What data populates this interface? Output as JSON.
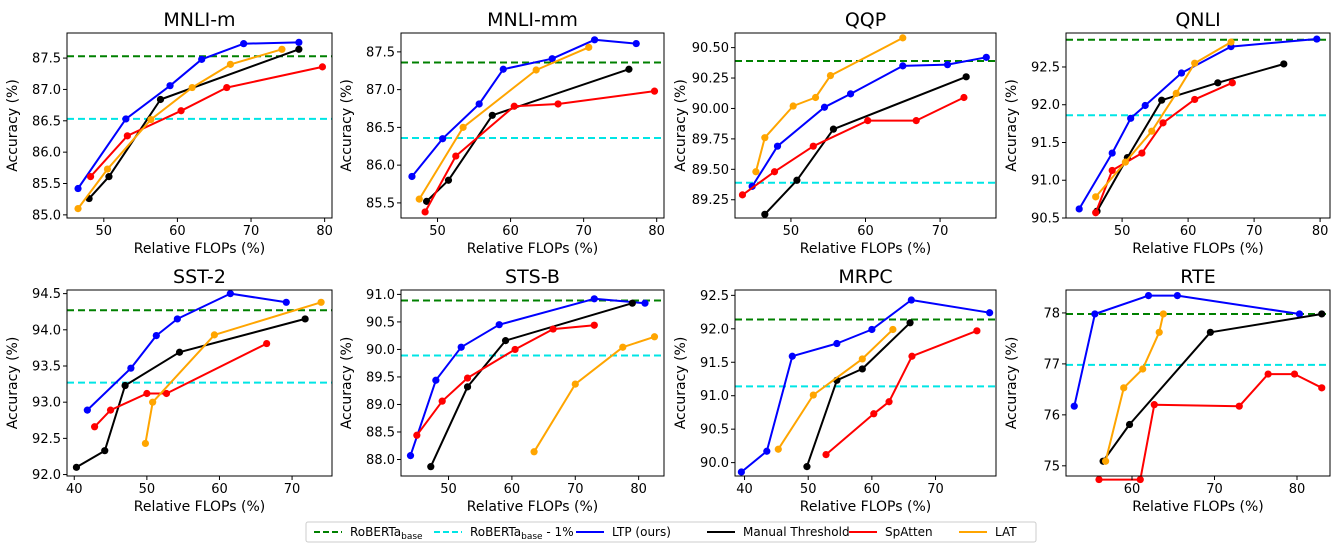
{
  "chart_data": [
    {
      "type": "line",
      "title": "MNLI-m",
      "xlabel": "Relative FLOPs (%)",
      "ylabel": "Accuracy (%)",
      "xlim": [
        45,
        81
      ],
      "ylim": [
        84.95,
        87.9
      ],
      "xticks": [
        "50",
        "60",
        "70",
        "80"
      ],
      "yticks": [
        "85.0",
        "85.5",
        "86.0",
        "86.5",
        "87.0",
        "87.5"
      ],
      "baseline": 87.53,
      "baseline_minus_1": 86.53,
      "series": [
        {
          "name": "LTP (ours)",
          "x": [
            46.5,
            53.0,
            59.0,
            63.3,
            69.0,
            76.5
          ],
          "y": [
            85.42,
            86.53,
            87.06,
            87.48,
            87.73,
            87.75
          ]
        },
        {
          "name": "Manual Threshold",
          "x": [
            48.0,
            50.7,
            57.7,
            76.5
          ],
          "y": [
            85.26,
            85.61,
            86.84,
            87.64
          ]
        },
        {
          "name": "SpAtten",
          "x": [
            48.2,
            53.2,
            60.5,
            66.7,
            79.7
          ],
          "y": [
            85.61,
            86.26,
            86.66,
            87.03,
            87.36
          ]
        },
        {
          "name": "LAT",
          "x": [
            46.5,
            50.5,
            56.4,
            62.0,
            67.2,
            74.2
          ],
          "y": [
            85.1,
            85.73,
            86.52,
            87.03,
            87.4,
            87.64
          ]
        }
      ]
    },
    {
      "type": "line",
      "title": "MNLI-mm",
      "xlabel": "Relative FLOPs (%)",
      "ylabel": "Accuracy (%)",
      "xlim": [
        45,
        81
      ],
      "ylim": [
        85.3,
        87.75
      ],
      "xticks": [
        "50",
        "60",
        "70",
        "80"
      ],
      "yticks": [
        "85.5",
        "86.0",
        "86.5",
        "87.0",
        "87.5"
      ],
      "baseline": 87.36,
      "baseline_minus_1": 86.36,
      "series": [
        {
          "name": "LTP (ours)",
          "x": [
            46.5,
            50.7,
            55.7,
            59.0,
            65.7,
            71.5,
            77.2
          ],
          "y": [
            85.85,
            86.35,
            86.81,
            87.27,
            87.41,
            87.66,
            87.61
          ]
        },
        {
          "name": "Manual Threshold",
          "x": [
            48.5,
            51.5,
            57.5,
            76.2
          ],
          "y": [
            85.52,
            85.8,
            86.66,
            87.27
          ]
        },
        {
          "name": "SpAtten",
          "x": [
            48.3,
            52.5,
            60.5,
            66.5,
            79.7
          ],
          "y": [
            85.38,
            86.12,
            86.78,
            86.81,
            86.98
          ]
        },
        {
          "name": "LAT",
          "x": [
            47.5,
            53.5,
            63.5,
            70.7
          ],
          "y": [
            85.55,
            86.5,
            87.26,
            87.56
          ]
        }
      ]
    },
    {
      "type": "line",
      "title": "QQP",
      "xlabel": "Relative FLOPs (%)",
      "ylabel": "Accuracy (%)",
      "xlim": [
        42.5,
        77.5
      ],
      "ylim": [
        89.1,
        90.62
      ],
      "xticks": [
        "50",
        "60",
        "70"
      ],
      "yticks": [
        "89.25",
        "89.50",
        "89.75",
        "90.00",
        "90.25",
        "90.50"
      ],
      "baseline": 90.39,
      "baseline_minus_1": 89.39,
      "series": [
        {
          "name": "LTP (ours)",
          "x": [
            44.8,
            48.2,
            54.5,
            58.0,
            65.0,
            71.0,
            76.2
          ],
          "y": [
            89.36,
            89.69,
            90.01,
            90.12,
            90.35,
            90.36,
            90.42
          ]
        },
        {
          "name": "Manual Threshold",
          "x": [
            46.5,
            50.8,
            55.7,
            73.5
          ],
          "y": [
            89.13,
            89.41,
            89.83,
            90.26
          ]
        },
        {
          "name": "SpAtten",
          "x": [
            43.5,
            47.8,
            53.0,
            60.3,
            66.8,
            73.2
          ],
          "y": [
            89.29,
            89.48,
            89.69,
            89.9,
            89.9,
            90.09
          ]
        },
        {
          "name": "LAT",
          "x": [
            45.3,
            46.5,
            50.3,
            53.3,
            55.3,
            65.0
          ],
          "y": [
            89.48,
            89.76,
            90.02,
            90.09,
            90.27,
            90.58
          ]
        }
      ]
    },
    {
      "type": "line",
      "title": "QNLI",
      "xlabel": "Relative FLOPs (%)",
      "ylabel": "Accuracy (%)",
      "xlim": [
        41.5,
        81.5
      ],
      "ylim": [
        90.5,
        92.95
      ],
      "xticks": [
        "50",
        "60",
        "70",
        "80"
      ],
      "yticks": [
        "90.5",
        "91.0",
        "91.5",
        "92.0",
        "92.5"
      ],
      "baseline": 92.86,
      "baseline_minus_1": 91.86,
      "series": [
        {
          "name": "LTP (ours)",
          "x": [
            43.5,
            48.5,
            51.3,
            53.5,
            59.0,
            66.5,
            79.5
          ],
          "y": [
            90.62,
            91.36,
            91.82,
            91.99,
            92.42,
            92.77,
            92.87
          ]
        },
        {
          "name": "Manual Threshold",
          "x": [
            46.2,
            50.8,
            56.0,
            64.5,
            74.5
          ],
          "y": [
            90.59,
            91.3,
            92.06,
            92.29,
            92.54
          ]
        },
        {
          "name": "SpAtten",
          "x": [
            46.0,
            48.5,
            53.0,
            56.2,
            61.0,
            66.7
          ],
          "y": [
            90.57,
            91.13,
            91.36,
            91.76,
            92.07,
            92.29
          ]
        },
        {
          "name": "LAT",
          "x": [
            46.0,
            50.5,
            54.5,
            58.2,
            61.0,
            66.5
          ],
          "y": [
            90.78,
            91.24,
            91.65,
            92.15,
            92.55,
            92.83
          ]
        }
      ]
    },
    {
      "type": "line",
      "title": "SST-2",
      "xlabel": "Relative FLOPs (%)",
      "ylabel": "Accuracy (%)",
      "xlim": [
        39,
        75.5
      ],
      "ylim": [
        91.98,
        94.55
      ],
      "xticks": [
        "40",
        "50",
        "60",
        "70"
      ],
      "yticks": [
        "92.0",
        "92.5",
        "93.0",
        "93.5",
        "94.0",
        "94.5"
      ],
      "baseline": 94.27,
      "baseline_minus_1": 93.27,
      "series": [
        {
          "name": "LTP (ours)",
          "x": [
            41.8,
            47.8,
            51.3,
            54.2,
            61.5,
            69.2
          ],
          "y": [
            92.89,
            93.47,
            93.92,
            94.15,
            94.5,
            94.38
          ]
        },
        {
          "name": "Manual Threshold",
          "x": [
            40.3,
            44.2,
            47.0,
            54.5,
            71.8
          ],
          "y": [
            92.1,
            92.33,
            93.23,
            93.69,
            94.15
          ]
        },
        {
          "name": "SpAtten",
          "x": [
            42.8,
            45.0,
            50.0,
            52.7,
            66.5
          ],
          "y": [
            92.66,
            92.89,
            93.12,
            93.12,
            93.81
          ]
        },
        {
          "name": "LAT",
          "x": [
            49.8,
            50.8,
            59.3,
            74.0
          ],
          "y": [
            92.43,
            93.0,
            93.93,
            94.38
          ]
        }
      ]
    },
    {
      "type": "line",
      "title": "STS-B",
      "xlabel": "Relative FLOPs (%)",
      "ylabel": "Accuracy (%)",
      "xlim": [
        42.5,
        84
      ],
      "ylim": [
        87.7,
        91.08
      ],
      "xticks": [
        "50",
        "60",
        "70",
        "80"
      ],
      "yticks": [
        "88.0",
        "88.5",
        "89.0",
        "89.5",
        "90.0",
        "90.5",
        "91.0"
      ],
      "baseline": 90.89,
      "baseline_minus_1": 89.89,
      "series": [
        {
          "name": "LTP (ours)",
          "x": [
            44.0,
            48.0,
            52.0,
            58.0,
            73.0,
            81.0
          ],
          "y": [
            88.07,
            89.44,
            90.04,
            90.45,
            90.92,
            90.84
          ]
        },
        {
          "name": "Manual Threshold",
          "x": [
            47.2,
            53.0,
            59.0,
            79.0
          ],
          "y": [
            87.87,
            89.32,
            90.16,
            90.84
          ]
        },
        {
          "name": "SpAtten",
          "x": [
            45.0,
            49.0,
            53.0,
            60.5,
            66.5,
            73.0
          ],
          "y": [
            88.44,
            89.06,
            89.48,
            90.0,
            90.37,
            90.44
          ]
        },
        {
          "name": "LAT",
          "x": [
            63.5,
            70.0,
            77.5,
            82.5
          ],
          "y": [
            88.14,
            89.37,
            90.04,
            90.23
          ]
        }
      ]
    },
    {
      "type": "line",
      "title": "MRPC",
      "xlabel": "Relative FLOPs (%)",
      "ylabel": "Accuracy (%)",
      "xlim": [
        38.5,
        79.5
      ],
      "ylim": [
        89.8,
        92.58
      ],
      "xticks": [
        "40",
        "50",
        "60",
        "70"
      ],
      "yticks": [
        "90.0",
        "90.5",
        "91.0",
        "91.5",
        "92.0",
        "92.5"
      ],
      "baseline": 92.14,
      "baseline_minus_1": 91.14,
      "series": [
        {
          "name": "LTP (ours)",
          "x": [
            39.5,
            43.5,
            47.5,
            54.5,
            60.0,
            66.2,
            78.5
          ],
          "y": [
            89.86,
            90.17,
            91.59,
            91.78,
            91.99,
            92.43,
            92.24
          ]
        },
        {
          "name": "Manual Threshold",
          "x": [
            49.8,
            54.5,
            58.5,
            66.0
          ],
          "y": [
            89.94,
            91.23,
            91.4,
            92.09
          ]
        },
        {
          "name": "SpAtten",
          "x": [
            52.8,
            60.3,
            62.7,
            66.3,
            76.5
          ],
          "y": [
            90.12,
            90.73,
            90.91,
            91.59,
            91.97
          ]
        },
        {
          "name": "LAT",
          "x": [
            45.3,
            50.8,
            58.5,
            63.3
          ],
          "y": [
            90.2,
            91.01,
            91.55,
            91.99
          ]
        }
      ]
    },
    {
      "type": "line",
      "title": "RTE",
      "xlabel": "Relative FLOPs (%)",
      "ylabel": "Accuracy (%)",
      "xlim": [
        52,
        84
      ],
      "ylim": [
        74.8,
        78.45
      ],
      "xticks": [
        "60",
        "70",
        "80"
      ],
      "yticks": [
        "75",
        "76",
        "77",
        "78"
      ],
      "baseline": 77.98,
      "baseline_minus_1": 76.98,
      "series": [
        {
          "name": "LTP (ours)",
          "x": [
            53.0,
            55.5,
            62.0,
            65.5,
            80.3
          ],
          "y": [
            76.17,
            77.98,
            78.34,
            78.34,
            77.98
          ]
        },
        {
          "name": "Manual Threshold",
          "x": [
            56.5,
            59.7,
            69.5,
            83.0
          ],
          "y": [
            75.09,
            75.81,
            77.62,
            77.98
          ]
        },
        {
          "name": "SpAtten",
          "x": [
            56.0,
            61.0,
            62.7,
            73.0,
            76.5,
            79.7,
            83.0
          ],
          "y": [
            74.73,
            74.73,
            76.2,
            76.17,
            76.8,
            76.8,
            76.53
          ]
        },
        {
          "name": "LAT",
          "x": [
            56.8,
            59.0,
            61.3,
            63.3,
            63.8
          ],
          "y": [
            75.09,
            76.53,
            76.9,
            77.62,
            77.98
          ]
        }
      ]
    }
  ],
  "legend": [
    {
      "label": "RoBERTa",
      "sub": "base",
      "suffix": "",
      "color": "#008000",
      "dash": true
    },
    {
      "label": "RoBERTa",
      "sub": "base",
      "suffix": " - 1%",
      "color": "#00e5e5",
      "dash": true
    },
    {
      "label": "LTP (ours)",
      "sub": "",
      "suffix": "",
      "color": "#0000ff",
      "dash": false
    },
    {
      "label": "Manual Threshold",
      "sub": "",
      "suffix": "",
      "color": "#000000",
      "dash": false
    },
    {
      "label": "SpAtten",
      "sub": "",
      "suffix": "",
      "color": "#ff0000",
      "dash": false
    },
    {
      "label": "LAT",
      "sub": "",
      "suffix": "",
      "color": "#ffa500",
      "dash": false
    }
  ],
  "colors": {
    "LTP (ours)": "#0000ff",
    "Manual Threshold": "#000000",
    "SpAtten": "#ff0000",
    "LAT": "#ffa500",
    "baseline": "#008000",
    "baseline_minus_1": "#00e5e5"
  }
}
